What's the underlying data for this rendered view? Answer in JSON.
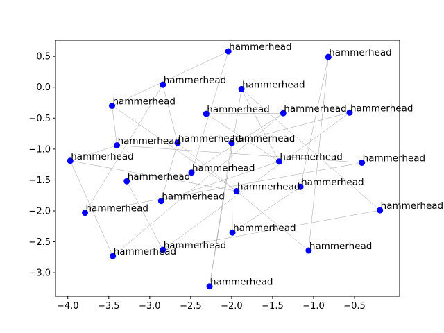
{
  "chart_data": {
    "type": "scatter",
    "title": "",
    "xlabel": "",
    "ylabel": "",
    "xlim": [
      -4.15,
      0.05
    ],
    "ylim": [
      -3.38,
      0.76
    ],
    "xticks": [
      -4.0,
      -3.5,
      -3.0,
      -2.5,
      -2.0,
      -1.5,
      -1.0,
      -0.5
    ],
    "xtick_labels": [
      "−4.0",
      "−3.5",
      "−3.0",
      "−2.5",
      "−2.0",
      "−1.5",
      "−1.0",
      "−0.5"
    ],
    "yticks": [
      0.5,
      0.0,
      -0.5,
      -1.0,
      -1.5,
      -2.0,
      -2.5,
      -3.0
    ],
    "ytick_labels": [
      "0.5",
      "0.0",
      "−0.5",
      "−1.0",
      "−1.5",
      "−2.0",
      "−2.5",
      "−3.0"
    ],
    "grid": false,
    "marker_color": "#0000ff",
    "edge_color": "#a0a0a0",
    "points": [
      {
        "x": -2.04,
        "y": 0.58,
        "label": "hammerhead"
      },
      {
        "x": -0.82,
        "y": 0.49,
        "label": "hammerhead"
      },
      {
        "x": -2.84,
        "y": 0.04,
        "label": "hammerhead"
      },
      {
        "x": -1.88,
        "y": -0.03,
        "label": "hammerhead"
      },
      {
        "x": -3.46,
        "y": -0.3,
        "label": "hammerhead"
      },
      {
        "x": -2.31,
        "y": -0.43,
        "label": "hammerhead"
      },
      {
        "x": -1.37,
        "y": -0.42,
        "label": "hammerhead"
      },
      {
        "x": -0.56,
        "y": -0.41,
        "label": "hammerhead"
      },
      {
        "x": -3.4,
        "y": -0.94,
        "label": "hammerhead"
      },
      {
        "x": -2.66,
        "y": -0.9,
        "label": "hammerhead"
      },
      {
        "x": -2.0,
        "y": -0.9,
        "label": "hammerhead"
      },
      {
        "x": -3.97,
        "y": -1.19,
        "label": "hammerhead"
      },
      {
        "x": -1.42,
        "y": -1.2,
        "label": "hammerhead"
      },
      {
        "x": -0.41,
        "y": -1.22,
        "label": "hammerhead"
      },
      {
        "x": -2.49,
        "y": -1.38,
        "label": "hammerhead"
      },
      {
        "x": -3.28,
        "y": -1.52,
        "label": "hammerhead"
      },
      {
        "x": -1.94,
        "y": -1.68,
        "label": "hammerhead"
      },
      {
        "x": -1.16,
        "y": -1.61,
        "label": "hammerhead"
      },
      {
        "x": -2.86,
        "y": -1.84,
        "label": "hammerhead"
      },
      {
        "x": -3.79,
        "y": -2.03,
        "label": "hammerhead"
      },
      {
        "x": -0.19,
        "y": -1.99,
        "label": "hammerhead"
      },
      {
        "x": -1.99,
        "y": -2.35,
        "label": "hammerhead"
      },
      {
        "x": -2.84,
        "y": -2.63,
        "label": "hammerhead"
      },
      {
        "x": -1.06,
        "y": -2.64,
        "label": "hammerhead"
      },
      {
        "x": -3.45,
        "y": -2.73,
        "label": "hammerhead"
      },
      {
        "x": -2.27,
        "y": -3.22,
        "label": "hammerhead"
      }
    ],
    "edges": [
      [
        0,
        4
      ],
      [
        0,
        14
      ],
      [
        1,
        17
      ],
      [
        1,
        23
      ],
      [
        2,
        9
      ],
      [
        2,
        19
      ],
      [
        3,
        20
      ],
      [
        3,
        25
      ],
      [
        4,
        8
      ],
      [
        4,
        16
      ],
      [
        5,
        6
      ],
      [
        5,
        12
      ],
      [
        6,
        24
      ],
      [
        7,
        10
      ],
      [
        7,
        22
      ],
      [
        8,
        11
      ],
      [
        8,
        13
      ],
      [
        9,
        18
      ],
      [
        9,
        23
      ],
      [
        10,
        25
      ],
      [
        10,
        21
      ],
      [
        11,
        24
      ],
      [
        11,
        16
      ],
      [
        12,
        18
      ],
      [
        13,
        19
      ],
      [
        15,
        22
      ],
      [
        17,
        21
      ],
      [
        20,
        22
      ],
      [
        14,
        6
      ],
      [
        3,
        12
      ]
    ]
  }
}
